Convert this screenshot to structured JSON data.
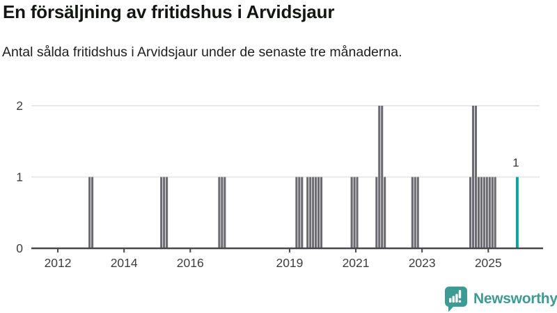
{
  "header": {
    "title": "En försäljning av fritidshus i Arvidsjaur",
    "subtitle": "Antal sålda fritidshus i Arvidsjaur under de senaste tre månaderna."
  },
  "chart_data": {
    "type": "bar",
    "title": "En försäljning av fritidshus i Arvidsjaur",
    "subtitle": "Antal sålda fritidshus i Arvidsjaur under de senaste tre månaderna.",
    "x_domain": [
      2011.2,
      2026.55
    ],
    "x_ticks": [
      2012,
      2014,
      2016,
      2019,
      2021,
      2023,
      2025
    ],
    "y_ticks": [
      0,
      1,
      2
    ],
    "ylim": [
      0,
      2
    ],
    "grid": "horizontal",
    "bar_color": "#6b6b71",
    "highlight_color": "#00a79b",
    "gridline_color": "#e9e9e9",
    "axis_color": "#48484c",
    "tick_label_color": "#3e3e40",
    "bars": [
      {
        "month": "2012-12",
        "value": 1
      },
      {
        "month": "2013-01",
        "value": 1
      },
      {
        "month": "2015-02",
        "value": 1
      },
      {
        "month": "2015-03",
        "value": 1
      },
      {
        "month": "2015-04",
        "value": 1
      },
      {
        "month": "2016-11",
        "value": 1
      },
      {
        "month": "2016-12",
        "value": 1
      },
      {
        "month": "2017-01",
        "value": 1
      },
      {
        "month": "2019-03",
        "value": 1
      },
      {
        "month": "2019-04",
        "value": 1
      },
      {
        "month": "2019-05",
        "value": 1
      },
      {
        "month": "2019-07",
        "value": 1
      },
      {
        "month": "2019-08",
        "value": 1
      },
      {
        "month": "2019-09",
        "value": 1
      },
      {
        "month": "2019-10",
        "value": 1
      },
      {
        "month": "2019-11",
        "value": 1
      },
      {
        "month": "2019-12",
        "value": 1
      },
      {
        "month": "2020-11",
        "value": 1
      },
      {
        "month": "2020-12",
        "value": 1
      },
      {
        "month": "2021-01",
        "value": 1
      },
      {
        "month": "2021-08",
        "value": 1
      },
      {
        "month": "2021-09",
        "value": 2
      },
      {
        "month": "2021-10",
        "value": 2
      },
      {
        "month": "2021-11",
        "value": 1
      },
      {
        "month": "2022-09",
        "value": 1
      },
      {
        "month": "2022-10",
        "value": 1
      },
      {
        "month": "2022-11",
        "value": 1
      },
      {
        "month": "2024-06",
        "value": 1
      },
      {
        "month": "2024-07",
        "value": 2
      },
      {
        "month": "2024-08",
        "value": 2
      },
      {
        "month": "2024-09",
        "value": 1
      },
      {
        "month": "2024-10",
        "value": 1
      },
      {
        "month": "2024-11",
        "value": 1
      },
      {
        "month": "2024-12",
        "value": 1
      },
      {
        "month": "2025-01",
        "value": 1
      },
      {
        "month": "2025-02",
        "value": 1
      },
      {
        "month": "2025-03",
        "value": 1
      }
    ],
    "highlight": {
      "month": "2025-11",
      "value": 1,
      "label": "1"
    }
  },
  "footer": {
    "brand": "Newsworthy",
    "logo_icon": "newsworthy-speech-bubble-bar-chart"
  },
  "colors": {
    "accent_teal": "#00a79b",
    "brand_teal": "#3d9b93",
    "bar_gray": "#6b6b71"
  }
}
